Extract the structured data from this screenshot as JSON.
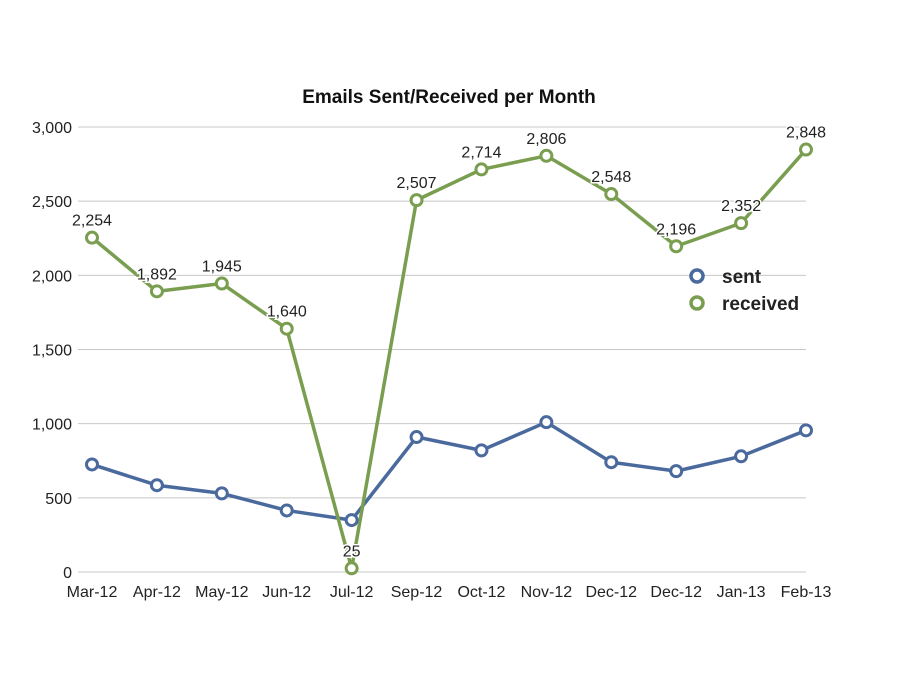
{
  "chart_data": {
    "type": "line",
    "title": "Emails Sent/Received per Month",
    "xlabel": "",
    "ylabel": "",
    "ylim": [
      0,
      3000
    ],
    "yticks": [
      0,
      500,
      1000,
      1500,
      2000,
      2500,
      3000
    ],
    "ytick_labels": [
      "0",
      "500",
      "1,000",
      "1,500",
      "2,000",
      "2,500",
      "3,000"
    ],
    "categories": [
      "Mar-12",
      "Apr-12",
      "May-12",
      "Jun-12",
      "Jul-12",
      "Sep-12",
      "Oct-12",
      "Nov-12",
      "Dec-12",
      "Dec-12",
      "Jan-13",
      "Feb-13"
    ],
    "grid": true,
    "legend_position": "right",
    "series": [
      {
        "name": "sent",
        "color": "#4a6a9e",
        "values": [
          725,
          585,
          530,
          415,
          350,
          910,
          820,
          1010,
          740,
          680,
          780,
          955
        ],
        "data_labels": []
      },
      {
        "name": "received",
        "color": "#7a9e50",
        "values": [
          2254,
          1892,
          1945,
          1640,
          25,
          2507,
          2714,
          2806,
          2548,
          2196,
          2352,
          2848
        ],
        "data_labels": [
          "2,254",
          "1,892",
          "1,945",
          "1,640",
          "25",
          "2,507",
          "2,714",
          "2,806",
          "2,548",
          "2,196",
          "2,352",
          "2,848"
        ]
      }
    ]
  }
}
